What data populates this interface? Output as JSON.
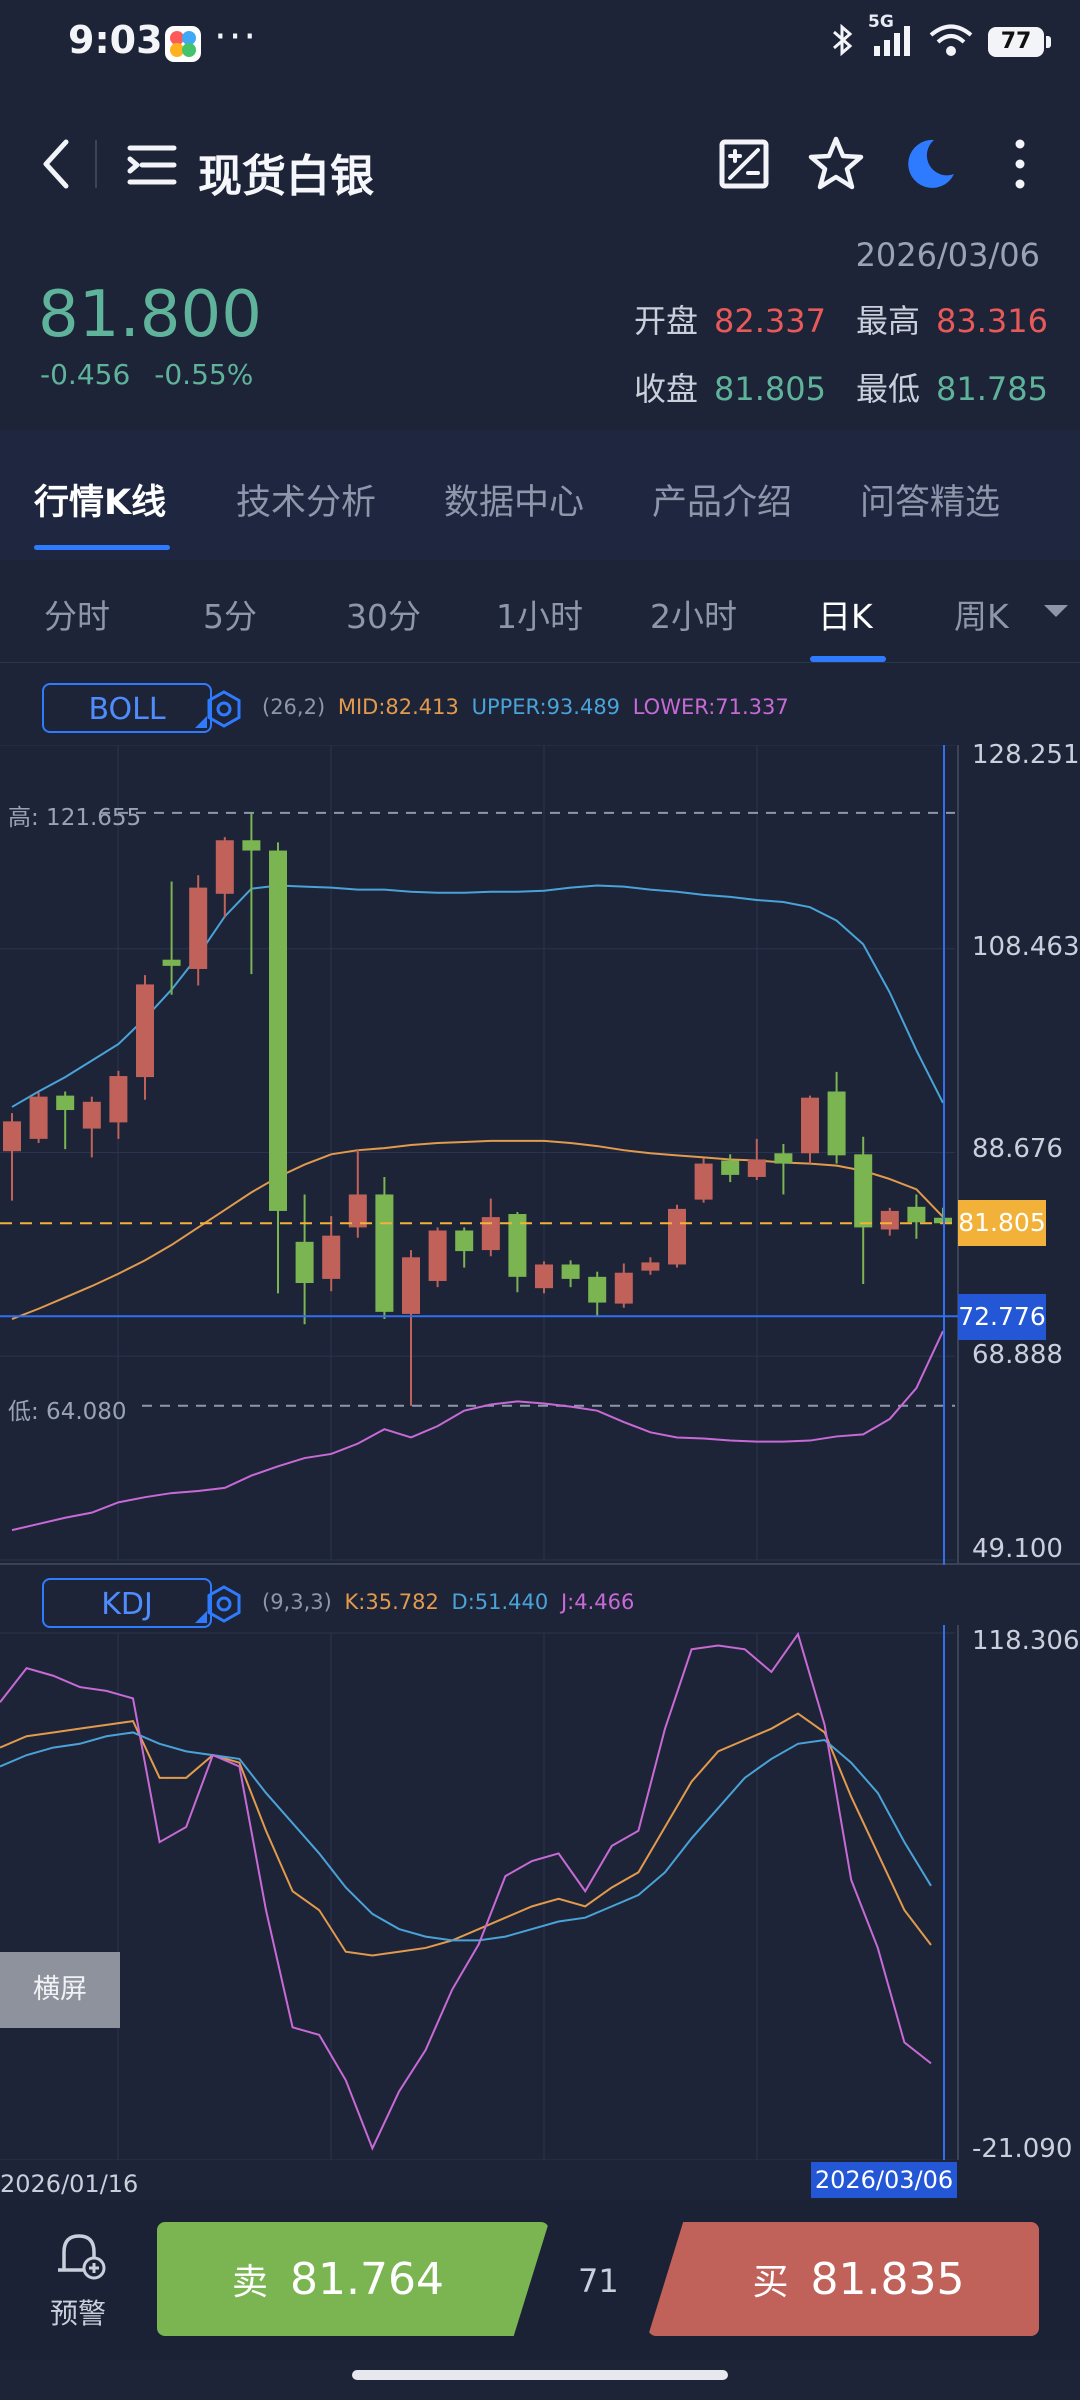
{
  "status_bar": {
    "time": "9:03",
    "network": "5G",
    "battery": "77"
  },
  "header": {
    "title": "现货白银",
    "icons": [
      "back-icon",
      "list-icon",
      "compare-icon",
      "star-icon",
      "night-mode-icon",
      "more-icon"
    ]
  },
  "quote": {
    "date": "2026/03/06",
    "price": "81.800",
    "change": "-0.456",
    "change_pct": "-0.55%",
    "open_label": "开盘",
    "open": "82.337",
    "high_label": "最高",
    "high": "83.316",
    "close_label": "收盘",
    "close": "81.805",
    "low_label": "最低",
    "low": "81.785",
    "colors": {
      "up": "#e8595a",
      "down": "#5fb39a"
    }
  },
  "tabs": [
    "行情K线",
    "技术分析",
    "数据中心",
    "产品介绍",
    "问答精选"
  ],
  "period_tabs": [
    "分时",
    "5分",
    "30分",
    "1小时",
    "2小时",
    "日K",
    "周K"
  ],
  "selected_period": "日K",
  "boll": {
    "name": "BOLL",
    "params": "(26,2)",
    "mid_label": "MID:82.413",
    "upper_label": "UPPER:93.489",
    "lower_label": "LOWER:71.337",
    "axis_labels": [
      "128.251",
      "108.463",
      "88.676",
      "68.888",
      "49.100"
    ],
    "high_marker": "高:  121.655",
    "low_marker": "低:  64.080",
    "current_price_tag": "81.805",
    "crosshair_tag": "72.776"
  },
  "kdj": {
    "name": "KDJ",
    "params": "(9,3,3)",
    "k_label": "K:35.782",
    "d_label": "D:51.440",
    "j_label": "J:4.466",
    "axis_labels": [
      "118.306",
      "-21.090"
    ]
  },
  "landscape_button": "横屏",
  "x_axis": {
    "start_date": "2026/01/16",
    "crosshair_date": "2026/03/06"
  },
  "chart_data": [
    {
      "type": "candlestick",
      "ylim": [
        49.1,
        128.251
      ],
      "candles": [
        {
          "o": 88.8,
          "c": 91.7,
          "h": 92.5,
          "l": 84.0
        },
        {
          "o": 90.0,
          "c": 94.1,
          "h": 94.5,
          "l": 89.6
        },
        {
          "o": 94.2,
          "c": 92.8,
          "h": 94.6,
          "l": 89.0
        },
        {
          "o": 91.0,
          "c": 93.6,
          "h": 94.1,
          "l": 88.2
        },
        {
          "o": 91.6,
          "c": 96.1,
          "h": 96.6,
          "l": 90.0
        },
        {
          "o": 96.0,
          "c": 105.0,
          "h": 105.9,
          "l": 93.8
        },
        {
          "o": 107.4,
          "c": 106.8,
          "h": 115.0,
          "l": 104.0
        },
        {
          "o": 106.5,
          "c": 114.4,
          "h": 115.6,
          "l": 104.9
        },
        {
          "o": 113.8,
          "c": 119.0,
          "h": 119.3,
          "l": 111.5
        },
        {
          "o": 119.0,
          "c": 118.0,
          "h": 121.655,
          "l": 106.0
        },
        {
          "o": 118.0,
          "c": 83.0,
          "h": 118.8,
          "l": 75.0
        },
        {
          "o": 80.0,
          "c": 76.0,
          "h": 84.6,
          "l": 72.0
        },
        {
          "o": 76.4,
          "c": 80.6,
          "h": 82.5,
          "l": 75.2
        },
        {
          "o": 81.4,
          "c": 84.6,
          "h": 89.0,
          "l": 80.4
        },
        {
          "o": 84.6,
          "c": 73.2,
          "h": 86.3,
          "l": 72.5
        },
        {
          "o": 73.0,
          "c": 78.5,
          "h": 79.2,
          "l": 64.08
        },
        {
          "o": 76.2,
          "c": 81.1,
          "h": 81.4,
          "l": 75.6
        },
        {
          "o": 81.1,
          "c": 79.1,
          "h": 81.4,
          "l": 77.5
        },
        {
          "o": 79.2,
          "c": 82.4,
          "h": 84.2,
          "l": 78.6
        },
        {
          "o": 82.7,
          "c": 76.6,
          "h": 82.9,
          "l": 75.1
        },
        {
          "o": 75.5,
          "c": 77.8,
          "h": 78.1,
          "l": 75.0
        },
        {
          "o": 77.8,
          "c": 76.4,
          "h": 78.2,
          "l": 75.6
        },
        {
          "o": 76.6,
          "c": 74.1,
          "h": 77.1,
          "l": 72.8
        },
        {
          "o": 74.0,
          "c": 77.0,
          "h": 77.9,
          "l": 73.6
        },
        {
          "o": 77.2,
          "c": 78.0,
          "h": 78.5,
          "l": 76.8
        },
        {
          "o": 77.8,
          "c": 83.2,
          "h": 83.6,
          "l": 77.5
        },
        {
          "o": 84.1,
          "c": 87.6,
          "h": 88.1,
          "l": 83.8
        },
        {
          "o": 87.9,
          "c": 86.5,
          "h": 88.5,
          "l": 85.8
        },
        {
          "o": 86.3,
          "c": 88.0,
          "h": 90.0,
          "l": 86.0
        },
        {
          "o": 88.6,
          "c": 87.6,
          "h": 89.5,
          "l": 84.6
        },
        {
          "o": 88.6,
          "c": 94.0,
          "h": 94.2,
          "l": 87.6
        },
        {
          "o": 94.6,
          "c": 88.4,
          "h": 96.5,
          "l": 87.6
        },
        {
          "o": 88.5,
          "c": 81.4,
          "h": 90.2,
          "l": 75.9
        },
        {
          "o": 81.2,
          "c": 83.0,
          "h": 83.3,
          "l": 80.6
        },
        {
          "o": 83.4,
          "c": 81.9,
          "h": 84.6,
          "l": 80.3
        },
        {
          "o": 82.337,
          "c": 81.805,
          "h": 83.316,
          "l": 81.785
        }
      ],
      "series": [
        {
          "name": "MID",
          "color": "#e29a4c",
          "values": [
            72.5,
            73.5,
            74.6,
            75.7,
            76.9,
            78.2,
            79.7,
            81.4,
            83.1,
            84.8,
            86.3,
            87.5,
            88.5,
            88.9,
            89.1,
            89.4,
            89.6,
            89.7,
            89.8,
            89.8,
            89.8,
            89.6,
            89.3,
            88.9,
            88.6,
            88.4,
            88.2,
            88.0,
            87.9,
            87.7,
            87.6,
            87.4,
            86.9,
            86.1,
            85.1,
            82.413
          ]
        },
        {
          "name": "UPPER",
          "color": "#4aa3d8",
          "values": [
            93.1,
            94.6,
            96.0,
            97.6,
            99.2,
            101.7,
            104.5,
            107.8,
            111.6,
            114.3,
            114.6,
            114.5,
            114.4,
            114.2,
            114.2,
            114.0,
            113.9,
            113.9,
            114.0,
            114.0,
            114.1,
            114.4,
            114.6,
            114.5,
            114.2,
            114.0,
            113.7,
            113.5,
            113.2,
            113.0,
            112.5,
            111.2,
            108.9,
            104.2,
            98.6,
            93.489
          ]
        },
        {
          "name": "LOWER",
          "color": "#c86ad6",
          "values": [
            52.0,
            52.6,
            53.2,
            53.7,
            54.7,
            55.2,
            55.6,
            55.8,
            56.1,
            57.3,
            58.2,
            59.0,
            59.4,
            60.4,
            61.8,
            61.0,
            62.1,
            63.6,
            64.2,
            64.5,
            64.3,
            64.0,
            63.6,
            62.5,
            61.5,
            61.0,
            60.9,
            60.7,
            60.6,
            60.6,
            60.7,
            61.1,
            61.3,
            62.8,
            65.8,
            71.337
          ]
        }
      ]
    },
    {
      "type": "line",
      "ylim": [
        -21.09,
        118.306
      ],
      "series": [
        {
          "name": "K",
          "color": "#e29a4c",
          "values": [
            88,
            91,
            92,
            93,
            94,
            95,
            80,
            80,
            86,
            84,
            66,
            50,
            45,
            34,
            33,
            34,
            35,
            37,
            40,
            43,
            46,
            48,
            46,
            51,
            55,
            67,
            79,
            87,
            90,
            93,
            97,
            92,
            75,
            60,
            45,
            35.782
          ]
        },
        {
          "name": "D",
          "color": "#4aa3d8",
          "values": [
            83,
            86,
            88,
            89,
            91,
            92,
            89,
            87,
            86,
            85,
            76,
            68,
            60,
            51,
            44,
            40,
            38,
            37,
            37,
            38,
            40,
            42,
            43,
            46,
            49,
            55,
            64,
            72,
            80,
            85,
            89,
            90,
            84,
            76,
            63,
            51.44
          ]
        },
        {
          "name": "J",
          "color": "#c86ad6",
          "values": [
            100,
            109,
            107,
            104,
            103,
            101,
            63,
            67,
            86,
            83,
            45,
            14,
            12,
            0,
            -18,
            -3,
            8,
            24,
            36,
            54,
            58,
            60,
            50,
            62,
            66,
            93,
            114,
            115,
            114,
            108,
            118,
            94,
            53,
            35,
            10,
            4.466
          ]
        }
      ]
    }
  ]
}
